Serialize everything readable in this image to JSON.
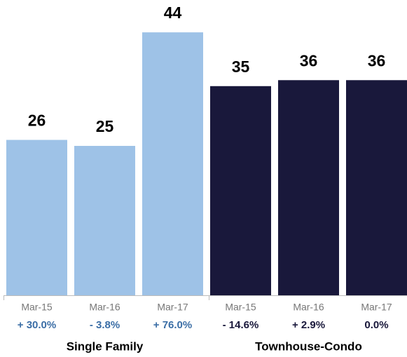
{
  "chart_data": {
    "type": "bar",
    "groups": [
      {
        "name": "Single Family",
        "color": "#9ec2e7",
        "label_color": "#3b6ea6",
        "categories": [
          "Mar-15",
          "Mar-16",
          "Mar-17"
        ],
        "values": [
          26,
          25,
          44
        ],
        "changes": [
          "+ 30.0%",
          "- 3.8%",
          "+ 76.0%"
        ]
      },
      {
        "name": "Townhouse-Condo",
        "color": "#19183b",
        "label_color": "#19183b",
        "categories": [
          "Mar-15",
          "Mar-16",
          "Mar-17"
        ],
        "values": [
          35,
          36,
          36
        ],
        "changes": [
          "- 14.6%",
          "+ 2.9%",
          "0.0%"
        ]
      }
    ]
  }
}
